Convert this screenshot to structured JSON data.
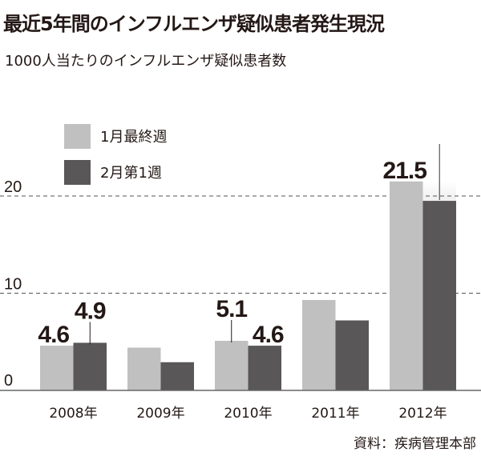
{
  "title": "最近5年間のインフルエンザ疑似患者発生現況",
  "subtitle": "1000人当たりのインフルエンザ疑似患者数",
  "source": "資料：疾病管理本部",
  "chart_data": {
    "type": "bar",
    "title": "最近5年間のインフルエンザ疑似患者発生現況",
    "ylabel": "1000人当たりのインフルエンザ疑似患者数",
    "categories": [
      "2008年",
      "2009年",
      "2010年",
      "2011年",
      "2012年"
    ],
    "series": [
      {
        "name": "1月最終週",
        "color": "#c0c0c0",
        "values": [
          4.6,
          4.4,
          5.1,
          9.3,
          21.5
        ]
      },
      {
        "name": "2月第1週",
        "color": "#595757",
        "values": [
          4.9,
          2.9,
          4.6,
          7.2,
          null
        ]
      }
    ],
    "data_labels": [
      {
        "series": 0,
        "index": 0,
        "text": "4.6"
      },
      {
        "series": 1,
        "index": 0,
        "text": "4.9"
      },
      {
        "series": 0,
        "index": 2,
        "text": "5.1"
      },
      {
        "series": 1,
        "index": 2,
        "text": "4.6"
      },
      {
        "series": 0,
        "index": 4,
        "text": "21.5"
      }
    ],
    "yticks": [
      "0",
      "10",
      "20"
    ],
    "ylim": [
      0,
      25
    ],
    "grid": true,
    "legend": "top-left",
    "note": "2012年 2月第1週 bar exceeds axis (truncated)"
  }
}
